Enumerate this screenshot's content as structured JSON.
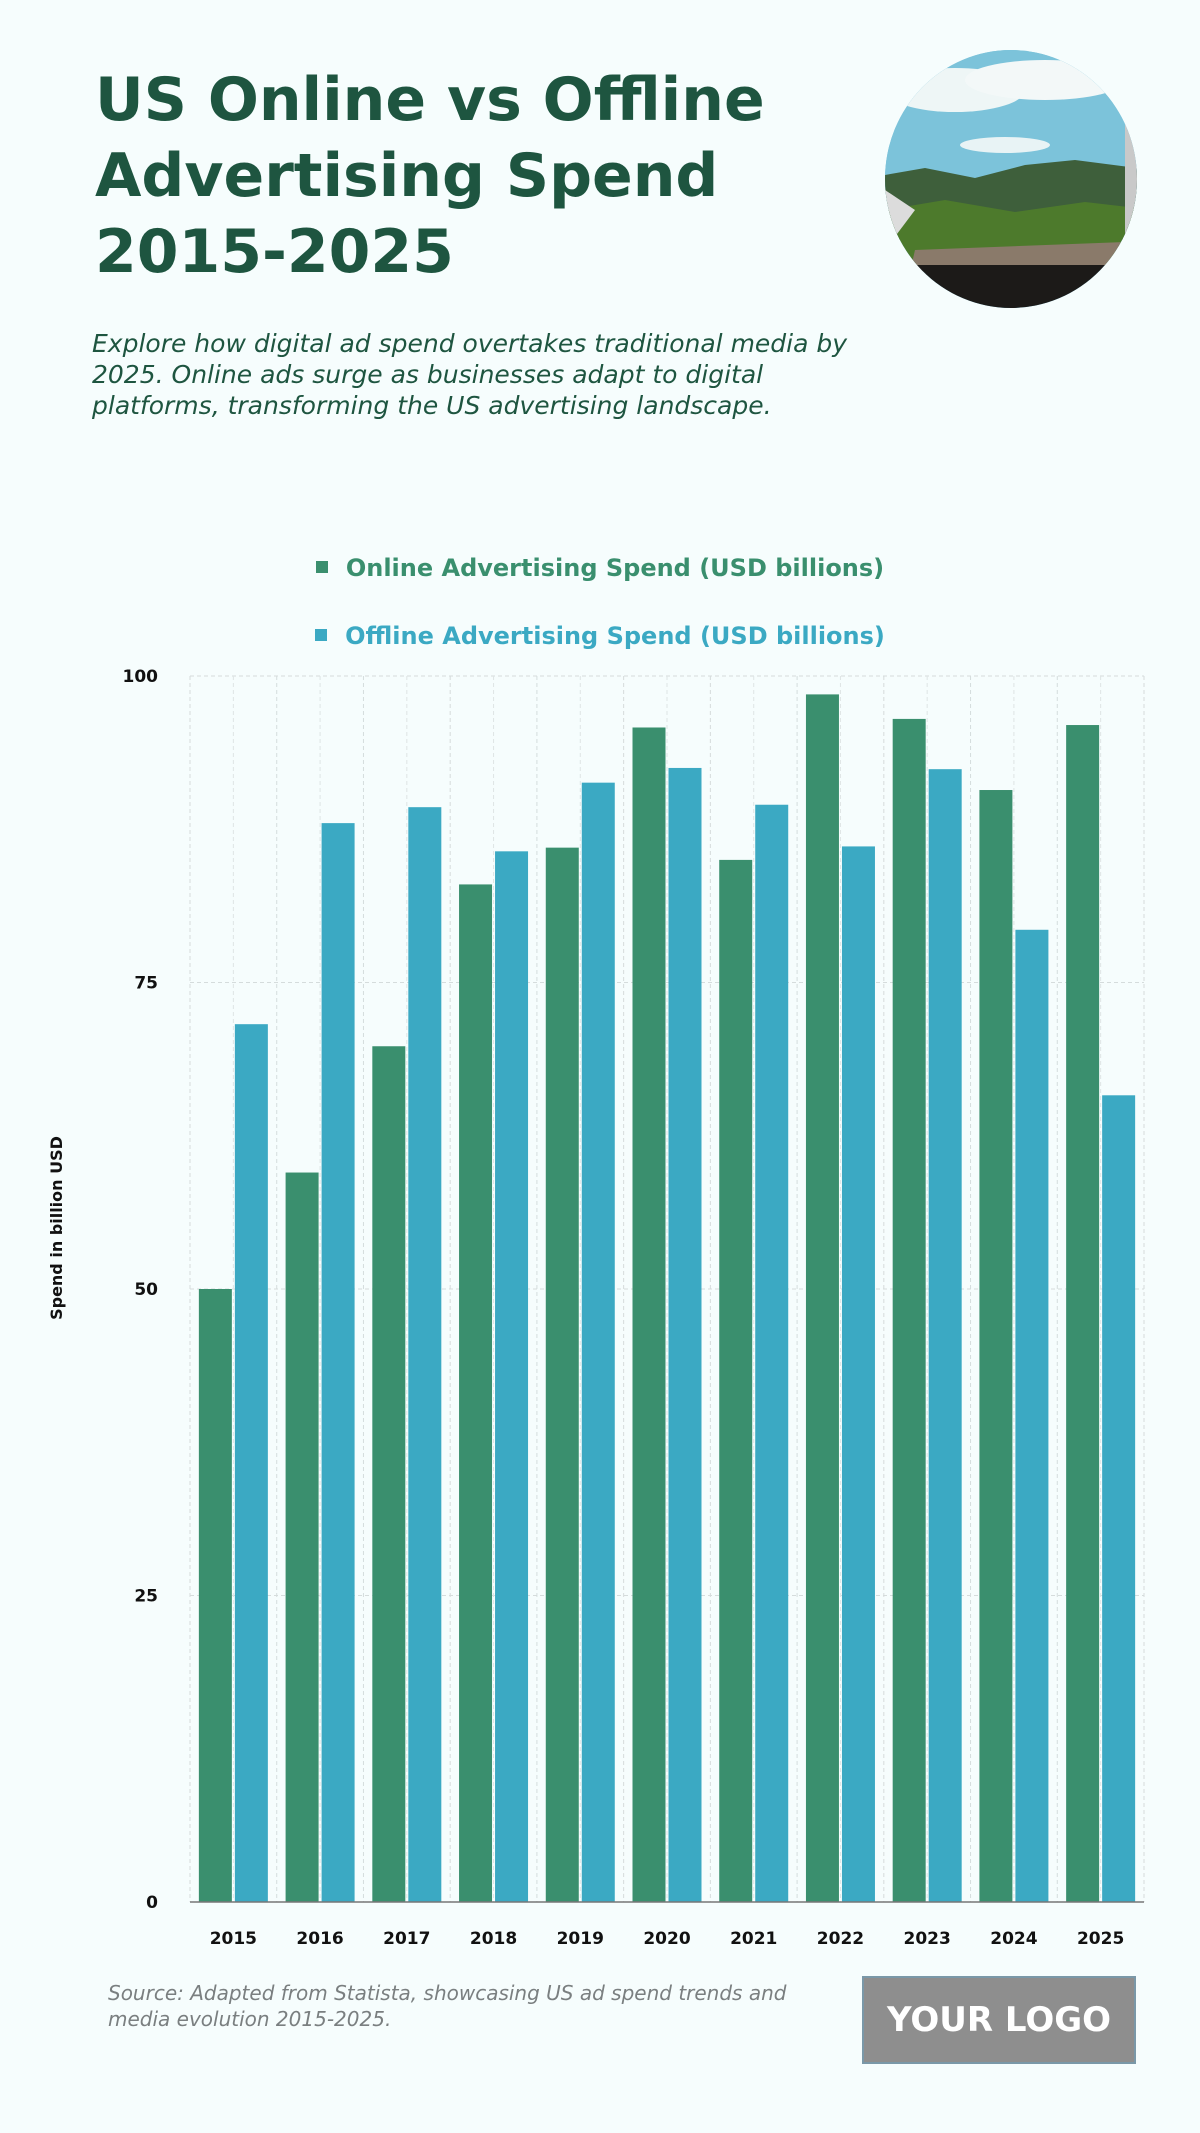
{
  "header": {
    "title": "US Online vs Offline Advertising Spend 2015-2025",
    "subtitle": "Explore how digital ad spend overtakes traditional media by 2025. Online ads surge as businesses adapt to digital platforms, transforming the US advertising landscape."
  },
  "footer": {
    "source": "Source: Adapted from Statista, showcasing US ad spend trends and media evolution 2015-2025.",
    "logo": "YOUR LOGO"
  },
  "colors": {
    "online": "#3a8f6e",
    "offline": "#3ba9c3",
    "title": "#1e5540"
  },
  "chart_data": {
    "type": "bar",
    "title": "",
    "xlabel": "",
    "ylabel": "Spend in billion USD",
    "ylim": [
      0,
      100
    ],
    "yticks": [
      0,
      25,
      50,
      75,
      100
    ],
    "grid": true,
    "legend_position": "top-center",
    "categories": [
      "2015",
      "2016",
      "2017",
      "2018",
      "2019",
      "2020",
      "2021",
      "2022",
      "2023",
      "2024",
      "2025"
    ],
    "series": [
      {
        "name": "Online Advertising Spend (USD billions)",
        "values": [
          50,
          59.5,
          69.8,
          83,
          86,
          95.8,
          85,
          98.5,
          96.5,
          90.7,
          96
        ]
      },
      {
        "name": "Offline Advertising Spend (USD billions)",
        "values": [
          71.6,
          88,
          89.3,
          85.7,
          91.3,
          92.5,
          89.5,
          86.1,
          92.4,
          79.3,
          65.8
        ]
      }
    ]
  }
}
